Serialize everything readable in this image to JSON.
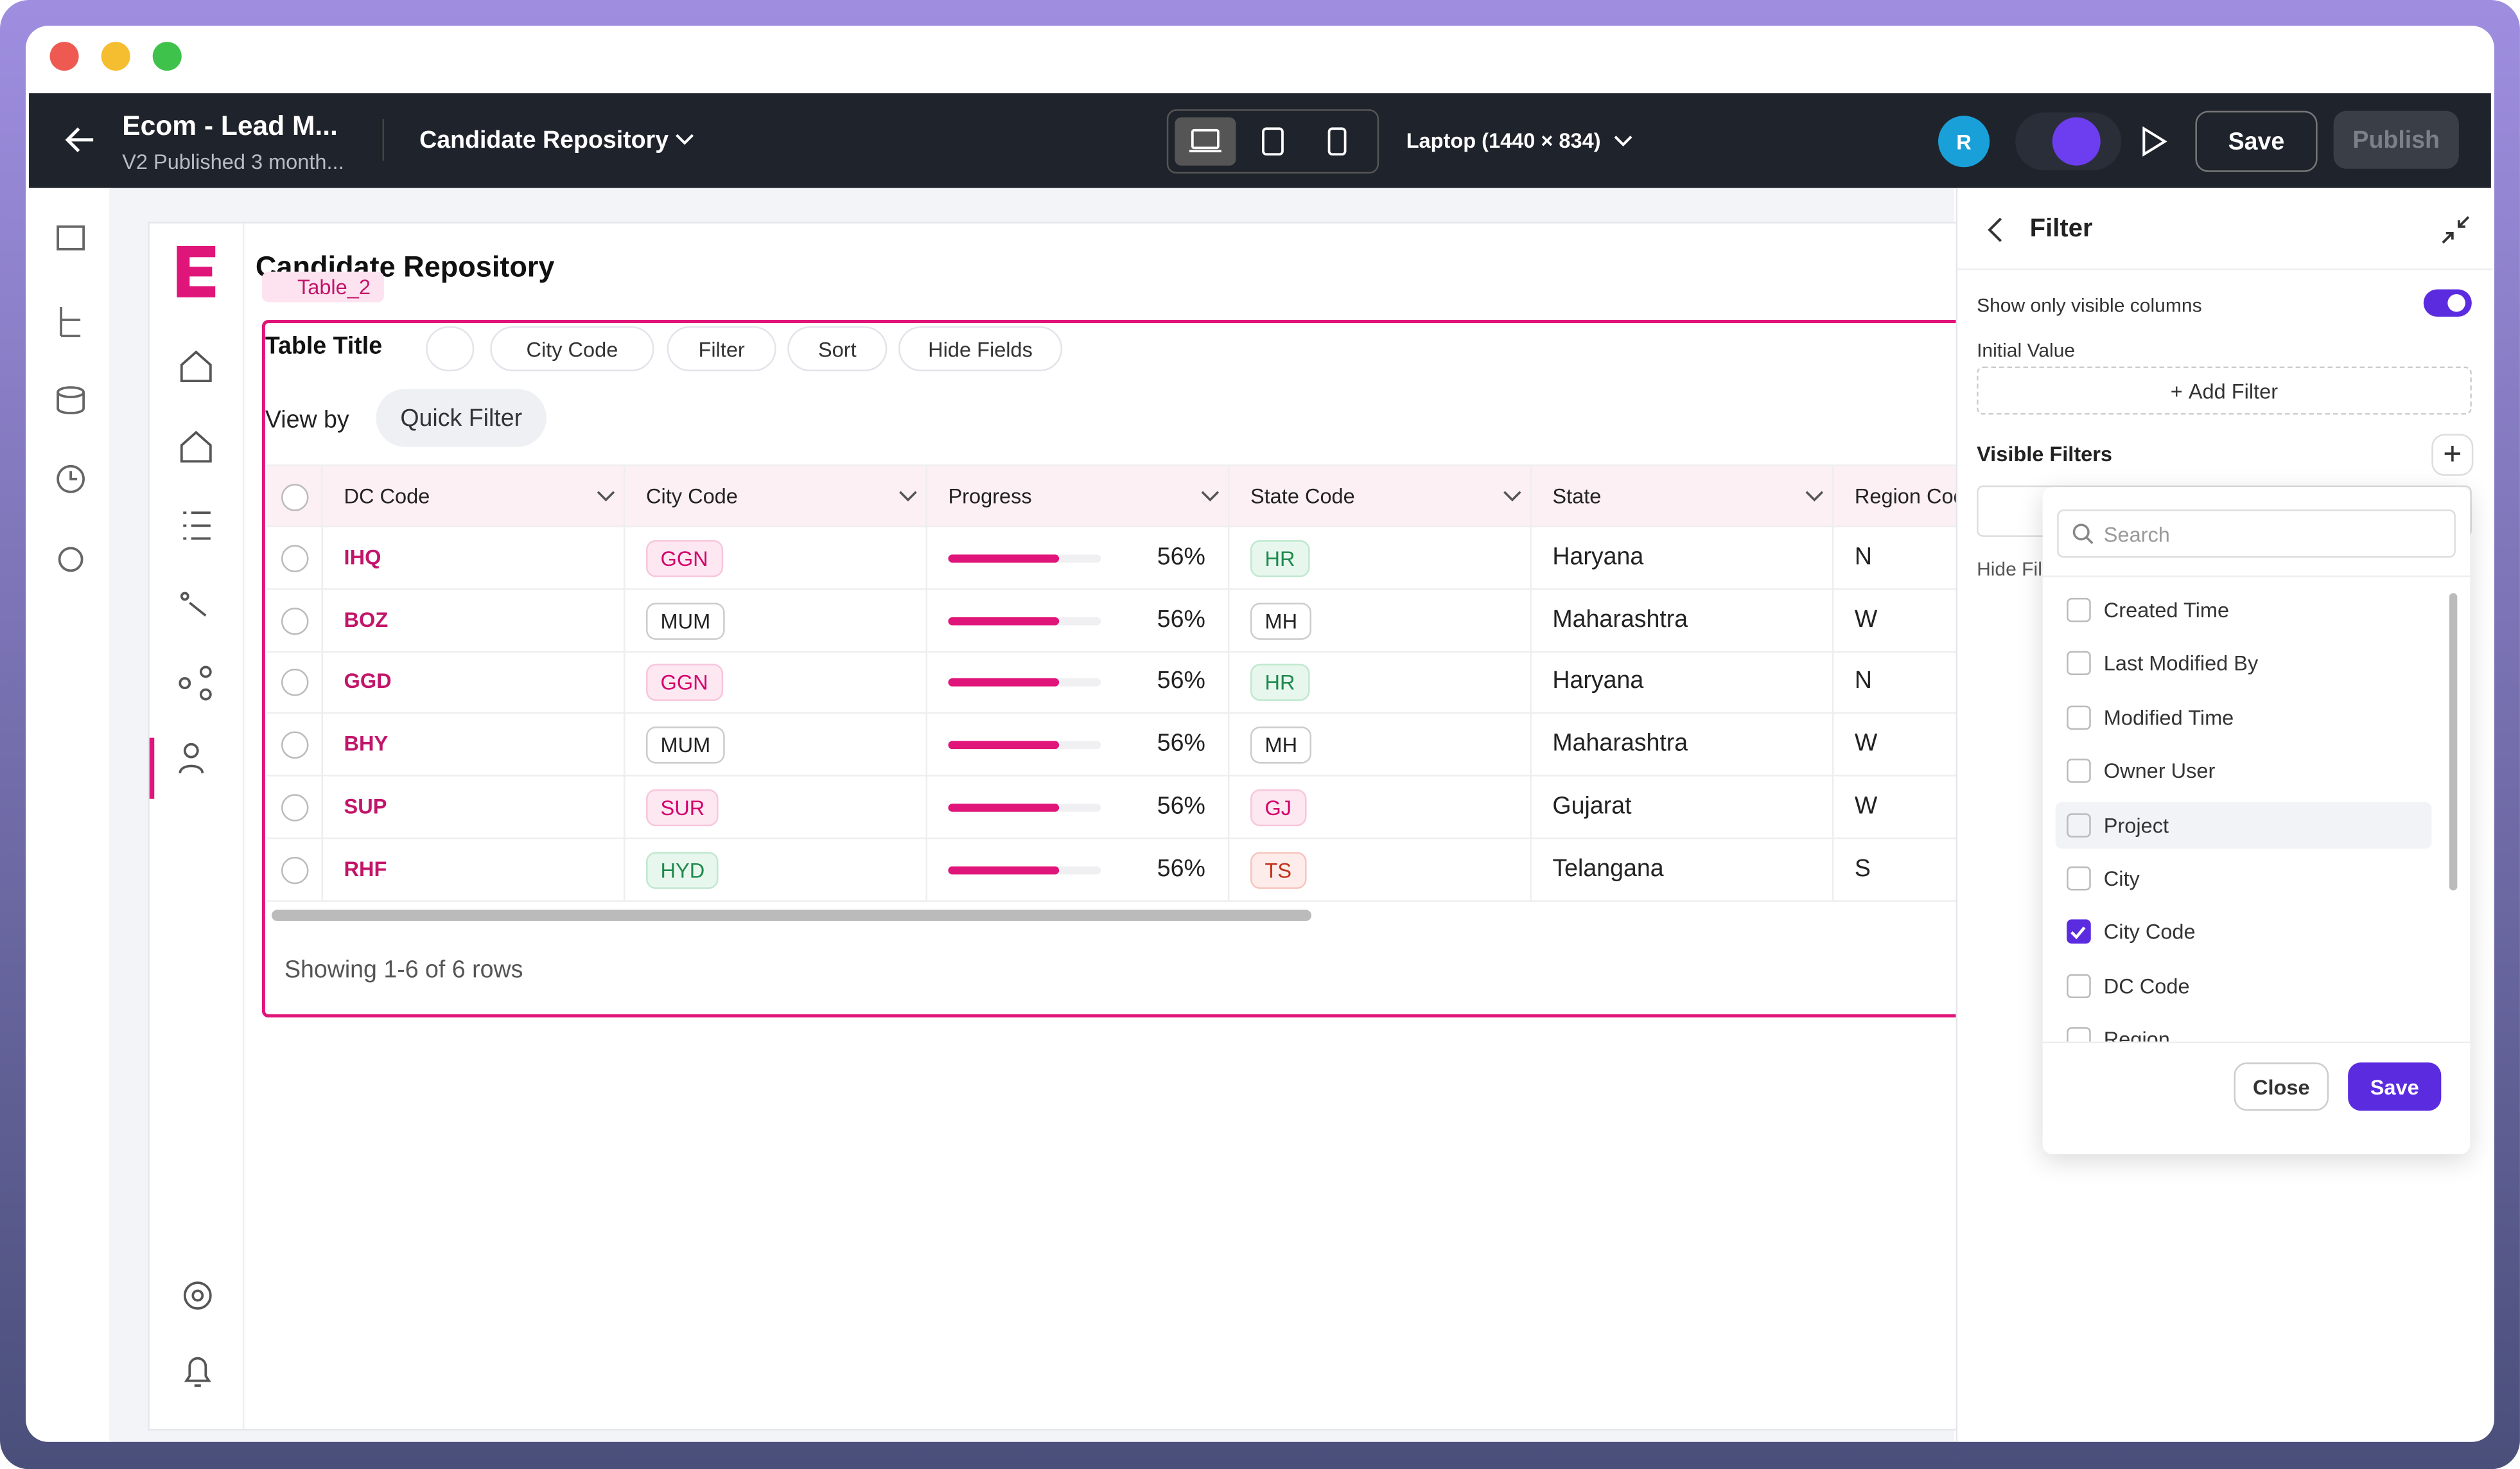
{
  "header": {
    "title": "Ecom - Lead M...",
    "subtitle": "V2 Published 3 month...",
    "page_select": "Candidate Repository",
    "device": "Laptop (1440 × 834)",
    "avatar": "R",
    "save": "Save",
    "publish": "Publish"
  },
  "canvas": {
    "page_title": "Candidate Repository",
    "widget_tag": "Table_2",
    "table_title": "Table Title",
    "toolbar": [
      "City Code",
      "Filter",
      "Sort",
      "Hide Fields"
    ],
    "view_by": "View by",
    "quick_filter": "Quick Filter",
    "table": {
      "columns": [
        "DC Code",
        "City Code",
        "Progress",
        "State Code",
        "State",
        "Region Code"
      ],
      "rows": [
        [
          {
            "text": "IHQ"
          },
          {
            "text": "GGN",
            "color": "pink"
          },
          {
            "value": 56,
            "label": "56%"
          },
          {
            "text": "HR",
            "color": "green"
          },
          {
            "text": "Haryana"
          },
          {
            "text": "N"
          }
        ],
        [
          {
            "text": "BOZ"
          },
          {
            "text": "MUM",
            "color": "plain"
          },
          {
            "value": 56,
            "label": "56%"
          },
          {
            "text": "MH",
            "color": "plain"
          },
          {
            "text": "Maharashtra"
          },
          {
            "text": "W"
          }
        ],
        [
          {
            "text": "GGD"
          },
          {
            "text": "GGN",
            "color": "pink"
          },
          {
            "value": 56,
            "label": "56%"
          },
          {
            "text": "HR",
            "color": "green"
          },
          {
            "text": "Haryana"
          },
          {
            "text": "N"
          }
        ],
        [
          {
            "text": "BHY"
          },
          {
            "text": "MUM",
            "color": "plain"
          },
          {
            "value": 56,
            "label": "56%"
          },
          {
            "text": "MH",
            "color": "plain"
          },
          {
            "text": "Maharashtra"
          },
          {
            "text": "W"
          }
        ],
        [
          {
            "text": "SUP"
          },
          {
            "text": "SUR",
            "color": "pink"
          },
          {
            "value": 56,
            "label": "56%"
          },
          {
            "text": "GJ",
            "color": "pink"
          },
          {
            "text": "Gujarat"
          },
          {
            "text": "W"
          }
        ],
        [
          {
            "text": "RHF"
          },
          {
            "text": "HYD",
            "color": "green"
          },
          {
            "value": 56,
            "label": "56%"
          },
          {
            "text": "TS",
            "color": "red"
          },
          {
            "text": "Telangana"
          },
          {
            "text": "S"
          }
        ]
      ]
    },
    "footer": "Showing 1-6 of 6 rows"
  },
  "filter_panel": {
    "title": "Filter",
    "toggle_label": "Show only visible columns",
    "toggle_on": true,
    "initial_value": "Initial Value",
    "add_filter": "Add Filter",
    "visible_filters": "Visible Filters",
    "hide_label": "Hide Fil",
    "dropdown": {
      "search_placeholder": "Search",
      "options": [
        {
          "label": "Created Time",
          "checked": false
        },
        {
          "label": "Last Modified By",
          "checked": false
        },
        {
          "label": "Modified Time",
          "checked": false
        },
        {
          "label": "Owner User",
          "checked": false
        },
        {
          "label": "Project",
          "checked": false,
          "highlighted": true
        },
        {
          "label": "City",
          "checked": false
        },
        {
          "label": "City Code",
          "checked": true
        },
        {
          "label": "DC Code",
          "checked": false
        },
        {
          "label": "Region",
          "checked": false
        }
      ],
      "close": "Close",
      "save": "Save"
    }
  }
}
